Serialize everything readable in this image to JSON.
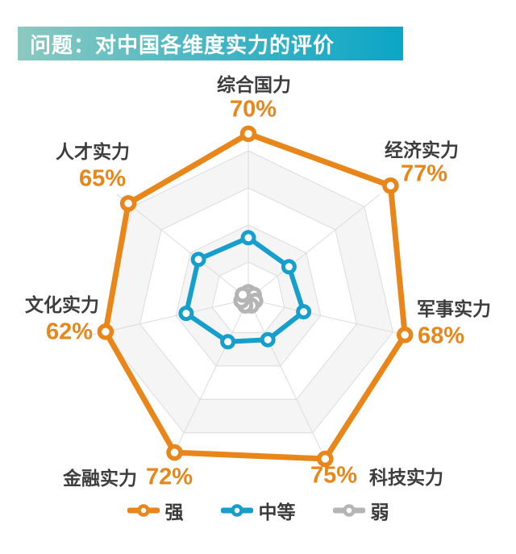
{
  "title": {
    "text": "问题：对中国各维度实力的评价"
  },
  "chart_data": {
    "type": "radar",
    "title": "问题：对中国各维度实力的评价",
    "categories": [
      "综合国力",
      "经济实力",
      "军事实力",
      "科技实力",
      "金融实力",
      "文化实力",
      "人才实力"
    ],
    "max": 100,
    "grid_levels": 4,
    "grid_shape": "heptagon",
    "legend_position": "bottom",
    "series": [
      {
        "name": "强",
        "color": "#e8861a",
        "labeled": true,
        "values": [
          70,
          77,
          68,
          75,
          72,
          62,
          65
        ],
        "labels": [
          "70%",
          "77%",
          "68%",
          "75%",
          "72%",
          "62%",
          "65%"
        ]
      },
      {
        "name": "中等",
        "color": "#169fcc",
        "labeled": false,
        "values": [
          26,
          22,
          24,
          19,
          20,
          27,
          27
        ]
      },
      {
        "name": "弱",
        "color": "#b5b5b5",
        "labeled": false,
        "values": [
          3,
          3,
          3,
          3,
          3,
          3,
          3
        ]
      }
    ]
  },
  "legend": {
    "items": [
      {
        "label": "强",
        "color": "#e8861a"
      },
      {
        "label": "中等",
        "color": "#169fcc"
      },
      {
        "label": "弱",
        "color": "#b5b5b5"
      }
    ]
  },
  "colors": {
    "accent_orange": "#e8861a",
    "accent_blue": "#169fcc",
    "accent_gray": "#b5b5b5",
    "title_bar_left": "#8cc9c0",
    "title_bar_right": "#0ba6c6",
    "grid_line": "#dcdcdc",
    "grid_band": "#f5f5f5",
    "label_text": "#3d3d3d"
  }
}
